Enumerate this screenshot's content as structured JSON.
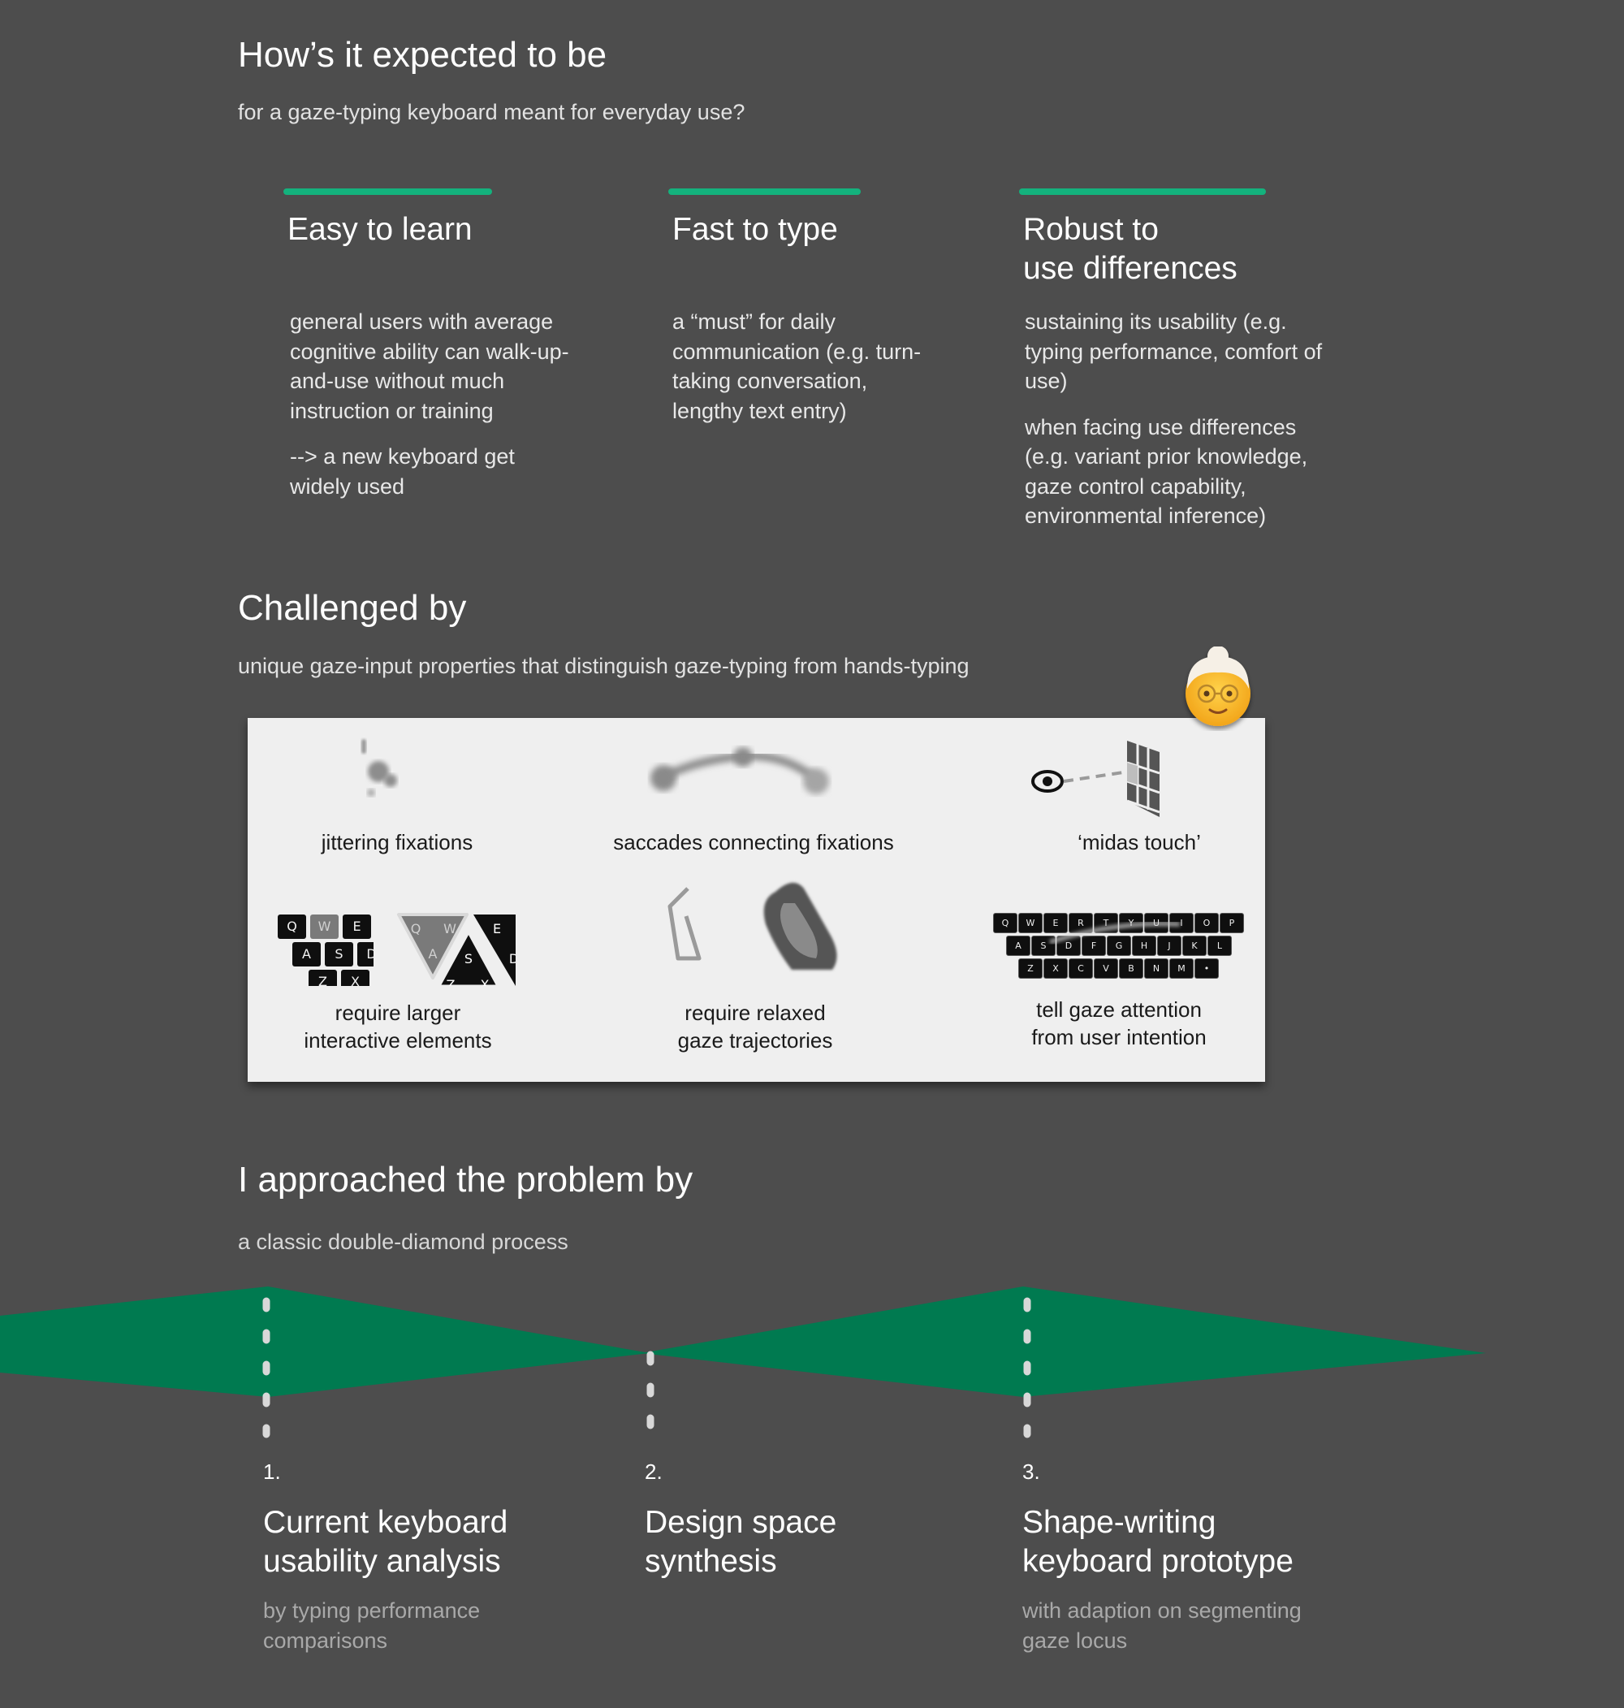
{
  "expected": {
    "title": "How’s it expected to be",
    "subtitle": "for a gaze-typing keyboard meant for everyday use?",
    "columns": [
      {
        "title_lines": [
          "Easy to learn"
        ],
        "paragraphs": [
          "general users with average cognitive ability can walk-up-and-use without much instruction or training",
          "--> a new keyboard get widely used"
        ]
      },
      {
        "title_lines": [
          "Fast to type"
        ],
        "paragraphs": [
          "a “must” for daily communication (e.g. turn-taking conversation, lengthy text entry)"
        ]
      },
      {
        "title_lines": [
          "Robust to",
          "use differences"
        ],
        "paragraphs": [
          "sustaining its usability (e.g. typing performance, comfort of use)",
          "when facing use differences (e.g. variant prior knowledge, gaze control capability, environmental inference)"
        ]
      }
    ]
  },
  "challenged": {
    "title": "Challenged by",
    "subtitle": "unique gaze-input properties that distinguish gaze-typing from hands-typing",
    "captions": {
      "jitter": "jittering fixations",
      "saccades": "saccades connecting fixations",
      "midas": "‘midas touch’",
      "larger": [
        "require larger",
        "interactive elements"
      ],
      "relaxed": [
        "require relaxed",
        "gaze trajectories"
      ],
      "attention": [
        "tell gaze attention",
        "from user intention"
      ]
    },
    "large_keys": {
      "row1": [
        "Q",
        "W",
        "E"
      ],
      "row2": [
        "A",
        "S",
        "D"
      ],
      "row3": [
        "Z",
        "X"
      ],
      "tri": [
        "Q",
        "W",
        "E",
        "A",
        "S",
        "D",
        "Z",
        "X"
      ]
    },
    "small_keys": {
      "row1": [
        "Q",
        "W",
        "E",
        "R",
        "T",
        "Y",
        "U",
        "I",
        "O",
        "P"
      ],
      "row2": [
        "A",
        "S",
        "D",
        "F",
        "G",
        "H",
        "J",
        "K",
        "L"
      ],
      "row3": [
        "Z",
        "X",
        "C",
        "V",
        "B",
        "N",
        "M",
        "•"
      ]
    }
  },
  "approach": {
    "title": "I approached the problem by",
    "subtitle": "a classic double-diamond process",
    "steps": [
      {
        "num": "1.",
        "title_lines": [
          "Current keyboard",
          "usability analysis"
        ],
        "text_lines": [
          "by typing performance",
          "comparisons"
        ]
      },
      {
        "num": "2.",
        "title_lines": [
          "Design space",
          "synthesis"
        ],
        "text_lines": []
      },
      {
        "num": "3.",
        "title_lines": [
          "Shape-writing",
          "keyboard prototype"
        ],
        "text_lines": [
          "with adaption on segmenting",
          "gaze locus"
        ]
      }
    ]
  },
  "colors": {
    "background": "#4d4d4d",
    "accent": "#14b27d",
    "diamond": "#007a50",
    "panel": "#efefef"
  }
}
